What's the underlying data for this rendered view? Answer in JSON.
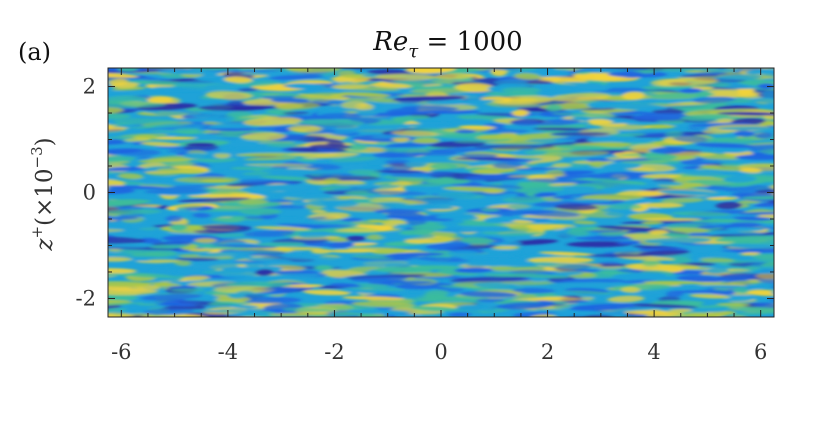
{
  "panel_label": "(a)",
  "chart_data": {
    "type": "heatmap",
    "title": "Reτ = 1000",
    "title_parts": {
      "main": "Re",
      "sub": "τ",
      "rest": " = 1000"
    },
    "xlabel": "",
    "ylabel": "z+(×10−3)",
    "ylabel_parts": {
      "var": "z",
      "sup": "+",
      "open": "(×10",
      "exp": "−3",
      "close": ")"
    },
    "xlim": [
      -6.25,
      6.25
    ],
    "ylim": [
      -2.35,
      2.35
    ],
    "x_ticks": [
      -6,
      -4,
      -2,
      0,
      2,
      4,
      6
    ],
    "x_tick_labels": [
      "-6",
      "-4",
      "-2",
      "0",
      "2",
      "4",
      "6"
    ],
    "y_ticks": [
      -2,
      0,
      2
    ],
    "y_tick_labels": [
      "-2",
      "0",
      "2"
    ],
    "colormap": [
      "#2b2ea6",
      "#1f66e0",
      "#1fa2d8",
      "#3cbc9c",
      "#a9c64a",
      "#f2d33a"
    ],
    "field_description_note": "streamwise-elongated streaky field"
  }
}
